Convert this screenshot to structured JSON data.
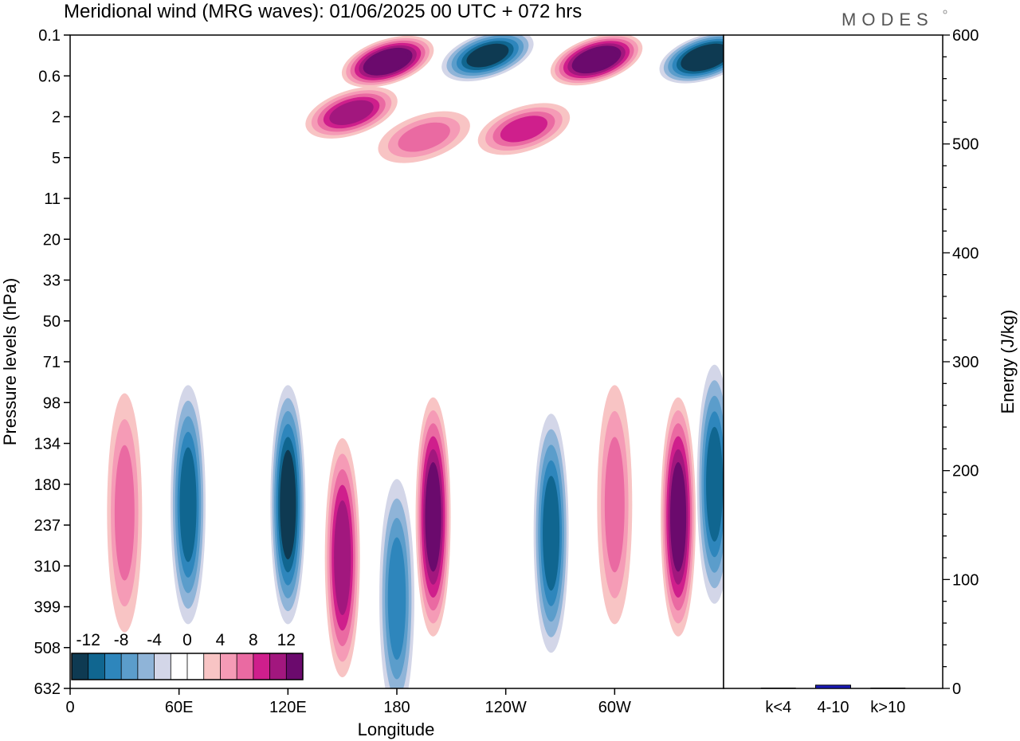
{
  "chart_data": [
    {
      "type": "heatmap",
      "title": "Meridional wind (MRG waves):  01/06/2025  00 UTC  + 072 hrs",
      "xlabel": "Longitude",
      "ylabel": "Pressure levels (hPa)",
      "x_ticks": [
        "0",
        "60E",
        "120E",
        "180",
        "120W",
        "60W"
      ],
      "y_ticks": [
        "0.1",
        "0.6",
        "2",
        "5",
        "11",
        "20",
        "33",
        "50",
        "71",
        "98",
        "134",
        "180",
        "237",
        "310",
        "399",
        "508",
        "632"
      ],
      "xlim": [
        0,
        360
      ],
      "colorbar": {
        "labels": [
          "-12",
          "-8",
          "-4",
          "0",
          "4",
          "8",
          "12"
        ],
        "levels": [
          -14,
          -12,
          -10,
          -8,
          -6,
          -4,
          -2,
          0,
          2,
          4,
          6,
          8,
          10,
          12,
          14
        ],
        "colors": [
          "#0e3a52",
          "#106690",
          "#2e86bc",
          "#5b9dcb",
          "#8fb4d8",
          "#d3d6e8",
          "#ffffff",
          "#ffffff",
          "#f8c4c4",
          "#f59bb6",
          "#ea6aa2",
          "#cf1f8c",
          "#a2177e",
          "#6b0a6d"
        ]
      },
      "features": [
        {
          "lon": 350,
          "lev_idx": 0.55,
          "value": -14
        },
        {
          "lon": 175,
          "lev_idx": 0.65,
          "value": 13
        },
        {
          "lon": 290,
          "lev_idx": 0.6,
          "value": 13
        },
        {
          "lon": 230,
          "lev_idx": 0.5,
          "value": -12
        },
        {
          "lon": 155,
          "lev_idx": 1.9,
          "value": 9
        },
        {
          "lon": 250,
          "lev_idx": 2.3,
          "value": 7
        },
        {
          "lon": 195,
          "lev_idx": 2.5,
          "value": 6
        },
        {
          "lon": 30,
          "lev_idx": 11.7,
          "value": 6
        },
        {
          "lon": 65,
          "lev_idx": 11.5,
          "value": -9
        },
        {
          "lon": 120,
          "lev_idx": 11.5,
          "value": -11
        },
        {
          "lon": 150,
          "lev_idx": 12.8,
          "value": 9
        },
        {
          "lon": 180,
          "lev_idx": 13.8,
          "value": -7
        },
        {
          "lon": 200,
          "lev_idx": 11.8,
          "value": 12
        },
        {
          "lon": 265,
          "lev_idx": 12.2,
          "value": -9
        },
        {
          "lon": 300,
          "lev_idx": 11.5,
          "value": 5
        },
        {
          "lon": 335,
          "lev_idx": 11.8,
          "value": 12
        },
        {
          "lon": 355,
          "lev_idx": 11.0,
          "value": -9
        }
      ]
    },
    {
      "type": "bar",
      "categories": [
        "k<4",
        "4-10",
        "k>10"
      ],
      "values": [
        0,
        3,
        0
      ],
      "ylabel": "Energy (J/kg)",
      "ylim": [
        0,
        600
      ],
      "y_ticks": [
        0,
        100,
        200,
        300,
        400,
        500,
        600
      ],
      "bar_color": "#1a1ab8"
    }
  ],
  "logo_text": "MODES"
}
